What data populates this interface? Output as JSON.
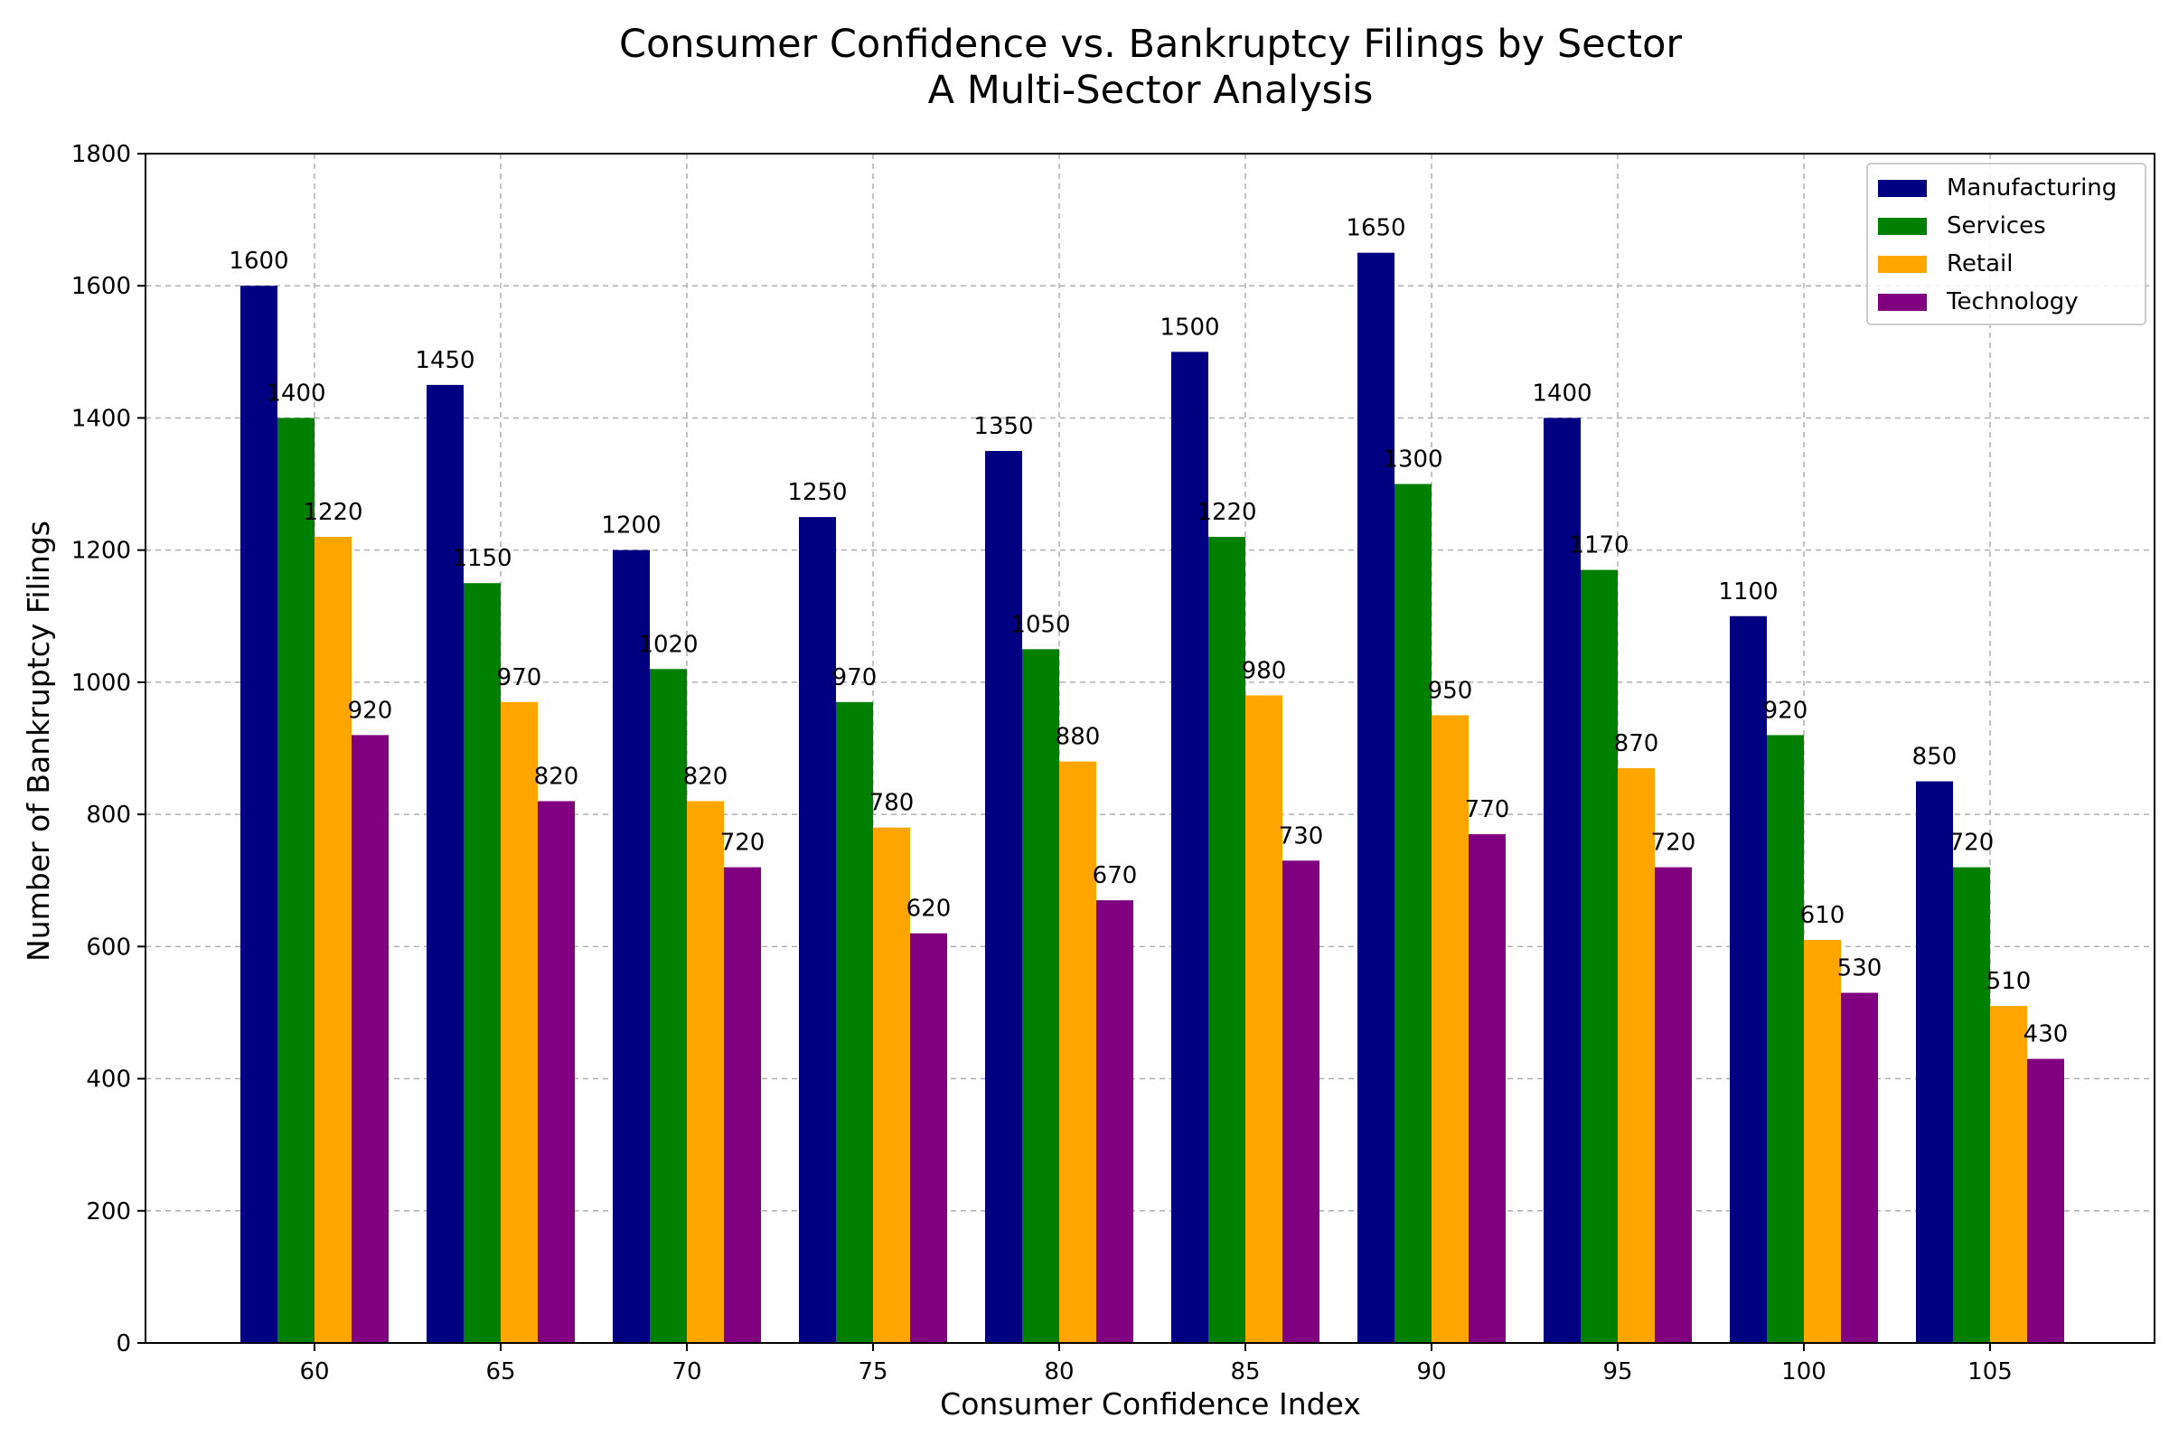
{
  "chart_data": {
    "type": "bar",
    "title": "Consumer Confidence vs. Bankruptcy Filings by Sector",
    "subtitle": "A Multi-Sector Analysis",
    "xlabel": "Consumer Confidence Index",
    "ylabel": "Number of Bankruptcy Filings",
    "categories": [
      "60",
      "65",
      "70",
      "75",
      "80",
      "85",
      "90",
      "95",
      "100",
      "105"
    ],
    "ylim": [
      0,
      1800
    ],
    "yticks": [
      0,
      200,
      400,
      600,
      800,
      1000,
      1200,
      1400,
      1600,
      1800
    ],
    "grid": true,
    "legend_position": "top-right",
    "series": [
      {
        "name": "Manufacturing",
        "color": "#000080",
        "values": [
          1600,
          1450,
          1200,
          1250,
          1350,
          1500,
          1650,
          1400,
          1100,
          850
        ]
      },
      {
        "name": "Services",
        "color": "#008000",
        "values": [
          1400,
          1150,
          1020,
          970,
          1050,
          1220,
          1300,
          1170,
          920,
          720
        ]
      },
      {
        "name": "Retail",
        "color": "#FFA500",
        "values": [
          1220,
          970,
          820,
          780,
          880,
          980,
          950,
          870,
          610,
          510
        ]
      },
      {
        "name": "Technology",
        "color": "#800080",
        "values": [
          920,
          820,
          720,
          620,
          670,
          730,
          770,
          720,
          530,
          430
        ]
      }
    ]
  }
}
